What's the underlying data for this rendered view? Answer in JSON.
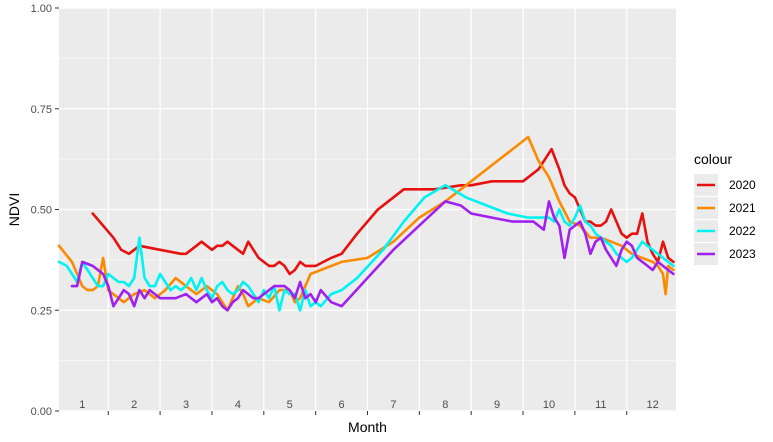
{
  "chart_data": {
    "type": "line",
    "xlabel": "Month",
    "ylabel": "NDVI",
    "xlim": [
      0.55,
      12.45
    ],
    "ylim": [
      0,
      1
    ],
    "y_ticks": [
      "0.00",
      "0.25",
      "0.50",
      "0.75",
      "1.00"
    ],
    "y_tick_values": [
      0,
      0.25,
      0.5,
      0.75,
      1.0
    ],
    "x_tick_labels": [
      "1",
      "2",
      "3",
      "4",
      "5",
      "6",
      "7",
      "8",
      "9",
      "10",
      "11",
      "12"
    ],
    "grid": true,
    "legend_title": "colour",
    "legend_position": "right",
    "colors": {
      "panel": "#ebebeb",
      "grid": "#ffffff"
    },
    "series": [
      {
        "name": "2020",
        "color": "#e8110f",
        "x": [
          1.2,
          1.6,
          1.75,
          1.9,
          2.1,
          2.5,
          2.9,
          3.0,
          3.1,
          3.2,
          3.3,
          3.4,
          3.5,
          3.6,
          3.7,
          3.8,
          3.9,
          4.0,
          4.1,
          4.2,
          4.3,
          4.4,
          4.5,
          4.6,
          4.7,
          4.8,
          4.9,
          5.0,
          5.1,
          5.2,
          5.3,
          5.5,
          5.8,
          6.0,
          6.3,
          6.7,
          7.2,
          7.8,
          8.3,
          8.5,
          8.9,
          9.5,
          9.8,
          10.05,
          10.2,
          10.3,
          10.4,
          10.5,
          10.6,
          10.7,
          10.8,
          10.9,
          11.0,
          11.1,
          11.2,
          11.3,
          11.4,
          11.5,
          11.6,
          11.7,
          11.8,
          11.9,
          12.0,
          12.1,
          12.2,
          12.3,
          12.4
        ],
        "y": [
          0.49,
          0.43,
          0.4,
          0.39,
          0.41,
          0.4,
          0.39,
          0.39,
          0.4,
          0.41,
          0.42,
          0.41,
          0.4,
          0.41,
          0.41,
          0.42,
          0.41,
          0.4,
          0.39,
          0.42,
          0.4,
          0.38,
          0.37,
          0.36,
          0.36,
          0.37,
          0.36,
          0.34,
          0.35,
          0.37,
          0.36,
          0.36,
          0.38,
          0.39,
          0.44,
          0.5,
          0.55,
          0.55,
          0.56,
          0.56,
          0.57,
          0.57,
          0.6,
          0.65,
          0.6,
          0.56,
          0.54,
          0.53,
          0.5,
          0.47,
          0.47,
          0.46,
          0.46,
          0.47,
          0.5,
          0.47,
          0.44,
          0.43,
          0.44,
          0.44,
          0.49,
          0.42,
          0.39,
          0.37,
          0.42,
          0.38,
          0.37
        ]
      },
      {
        "name": "2021",
        "color": "#fb8a00",
        "x": [
          0.55,
          0.8,
          1.0,
          1.1,
          1.2,
          1.3,
          1.4,
          1.5,
          1.6,
          1.7,
          1.8,
          2.0,
          2.2,
          2.4,
          2.6,
          2.8,
          3.0,
          3.2,
          3.4,
          3.6,
          3.8,
          4.0,
          4.1,
          4.2,
          4.4,
          4.6,
          4.8,
          5.0,
          5.1,
          5.2,
          5.4,
          5.6,
          6.0,
          6.5,
          7.0,
          7.5,
          8.0,
          8.5,
          9.0,
          9.3,
          9.6,
          9.8,
          10.0,
          10.2,
          10.4,
          10.6,
          10.8,
          11.0,
          11.2,
          11.4,
          11.6,
          11.8,
          12.0,
          12.1,
          12.2,
          12.25,
          12.3,
          12.4
        ],
        "y": [
          0.41,
          0.37,
          0.31,
          0.3,
          0.3,
          0.31,
          0.38,
          0.3,
          0.29,
          0.28,
          0.27,
          0.29,
          0.3,
          0.28,
          0.3,
          0.33,
          0.31,
          0.29,
          0.31,
          0.29,
          0.25,
          0.31,
          0.29,
          0.26,
          0.28,
          0.27,
          0.3,
          0.3,
          0.27,
          0.28,
          0.34,
          0.35,
          0.37,
          0.38,
          0.42,
          0.48,
          0.52,
          0.57,
          0.62,
          0.65,
          0.68,
          0.62,
          0.58,
          0.52,
          0.47,
          0.46,
          0.43,
          0.43,
          0.42,
          0.41,
          0.39,
          0.38,
          0.37,
          0.36,
          0.34,
          0.29,
          0.36,
          0.35
        ]
      },
      {
        "name": "2022",
        "color": "#00f2f2",
        "x": [
          0.55,
          0.7,
          0.8,
          0.9,
          1.0,
          1.1,
          1.2,
          1.3,
          1.4,
          1.5,
          1.6,
          1.7,
          1.8,
          1.9,
          2.0,
          2.1,
          2.2,
          2.3,
          2.4,
          2.5,
          2.6,
          2.7,
          2.8,
          2.9,
          3.0,
          3.1,
          3.2,
          3.3,
          3.4,
          3.5,
          3.6,
          3.7,
          3.8,
          3.9,
          4.0,
          4.1,
          4.2,
          4.3,
          4.4,
          4.5,
          4.6,
          4.7,
          4.8,
          4.9,
          5.0,
          5.1,
          5.2,
          5.3,
          5.4,
          5.5,
          5.6,
          5.8,
          6.0,
          6.3,
          6.8,
          7.2,
          7.6,
          8.0,
          8.4,
          8.8,
          9.2,
          9.6,
          10.0,
          10.1,
          10.2,
          10.3,
          10.4,
          10.5,
          10.6,
          10.7,
          10.8,
          10.9,
          11.0,
          11.1,
          11.2,
          11.3,
          11.4,
          11.5,
          11.6,
          11.7,
          11.8,
          11.9,
          12.0,
          12.1,
          12.2,
          12.3,
          12.4
        ],
        "y": [
          0.37,
          0.36,
          0.34,
          0.32,
          0.37,
          0.35,
          0.33,
          0.31,
          0.31,
          0.34,
          0.33,
          0.32,
          0.32,
          0.31,
          0.33,
          0.43,
          0.33,
          0.31,
          0.31,
          0.34,
          0.32,
          0.3,
          0.31,
          0.3,
          0.31,
          0.33,
          0.3,
          0.33,
          0.3,
          0.28,
          0.31,
          0.32,
          0.3,
          0.29,
          0.3,
          0.32,
          0.31,
          0.29,
          0.27,
          0.3,
          0.28,
          0.31,
          0.25,
          0.3,
          0.29,
          0.29,
          0.25,
          0.3,
          0.26,
          0.27,
          0.26,
          0.29,
          0.3,
          0.33,
          0.4,
          0.47,
          0.53,
          0.56,
          0.53,
          0.51,
          0.49,
          0.48,
          0.48,
          0.47,
          0.5,
          0.47,
          0.46,
          0.48,
          0.51,
          0.47,
          0.46,
          0.44,
          0.43,
          0.42,
          0.41,
          0.39,
          0.38,
          0.37,
          0.38,
          0.4,
          0.42,
          0.41,
          0.4,
          0.39,
          0.38,
          0.37,
          0.36
        ]
      },
      {
        "name": "2023",
        "color": "#a020f0",
        "x": [
          0.8,
          0.9,
          1.0,
          1.2,
          1.4,
          1.5,
          1.6,
          1.7,
          1.8,
          1.9,
          2.0,
          2.1,
          2.2,
          2.3,
          2.4,
          2.5,
          2.6,
          2.8,
          3.0,
          3.2,
          3.4,
          3.5,
          3.6,
          3.7,
          3.8,
          3.9,
          4.0,
          4.1,
          4.2,
          4.3,
          4.4,
          4.5,
          4.6,
          4.7,
          4.8,
          4.9,
          5.0,
          5.1,
          5.2,
          5.3,
          5.4,
          5.5,
          5.6,
          5.8,
          6.0,
          6.5,
          7.0,
          7.5,
          8.0,
          8.3,
          8.5,
          8.9,
          9.3,
          9.7,
          9.9,
          10.0,
          10.1,
          10.2,
          10.3,
          10.4,
          10.5,
          10.6,
          10.7,
          10.8,
          10.9,
          11.0,
          11.1,
          11.2,
          11.3,
          11.4,
          11.5,
          11.6,
          11.7,
          11.8,
          11.9,
          12.0,
          12.1,
          12.2,
          12.3,
          12.4
        ],
        "y": [
          0.31,
          0.31,
          0.37,
          0.36,
          0.34,
          0.31,
          0.26,
          0.28,
          0.3,
          0.29,
          0.26,
          0.3,
          0.28,
          0.3,
          0.29,
          0.28,
          0.28,
          0.28,
          0.29,
          0.27,
          0.29,
          0.27,
          0.28,
          0.26,
          0.25,
          0.27,
          0.28,
          0.3,
          0.29,
          0.28,
          0.28,
          0.29,
          0.3,
          0.31,
          0.31,
          0.31,
          0.3,
          0.28,
          0.32,
          0.28,
          0.29,
          0.27,
          0.3,
          0.27,
          0.26,
          0.33,
          0.4,
          0.46,
          0.52,
          0.51,
          0.49,
          0.48,
          0.47,
          0.47,
          0.45,
          0.52,
          0.48,
          0.46,
          0.38,
          0.45,
          0.46,
          0.47,
          0.44,
          0.39,
          0.42,
          0.43,
          0.4,
          0.38,
          0.36,
          0.4,
          0.42,
          0.41,
          0.38,
          0.37,
          0.36,
          0.35,
          0.37,
          0.36,
          0.35,
          0.34
        ]
      }
    ]
  }
}
